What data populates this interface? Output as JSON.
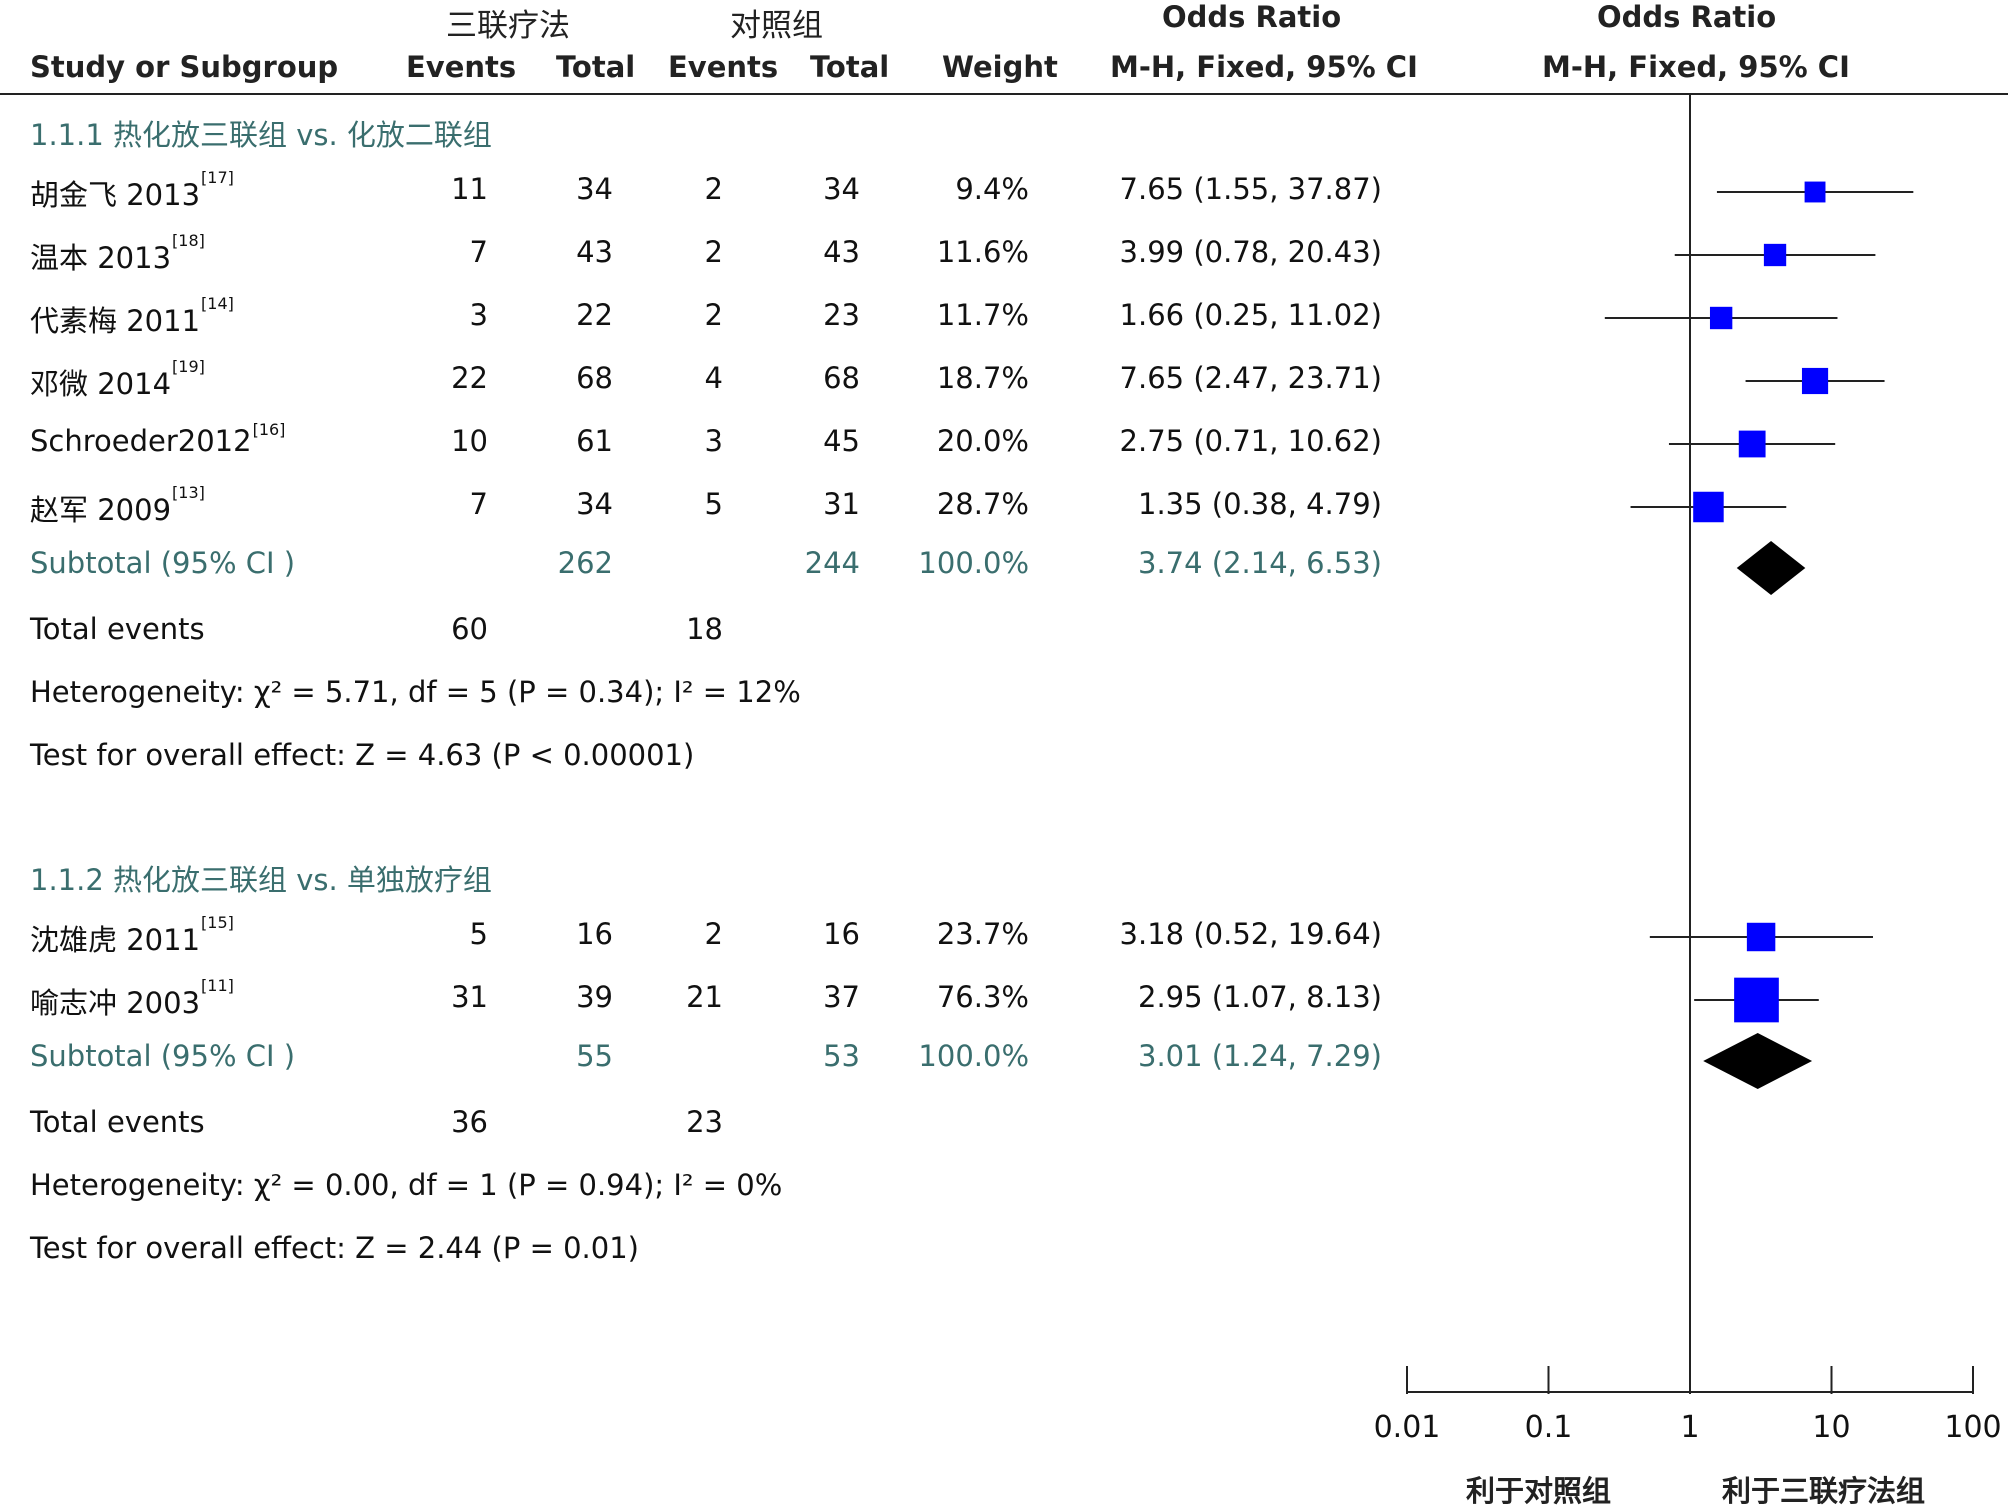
{
  "header": {
    "group_exp": "三联疗法",
    "group_ctl": "对照组",
    "or_title": "Odds Ratio",
    "or_method": "M-H, Fixed, 95% CI",
    "plot_title": "Odds Ratio",
    "plot_method": "M-H, Fixed, 95% CI",
    "study": "Study or Subgroup",
    "events_exp": "Events",
    "total_exp": "Total",
    "events_ctl": "Events",
    "total_ctl": "Total",
    "weight": "Weight"
  },
  "chart_data": {
    "type": "forest",
    "x_scale": "log",
    "xlim": [
      0.01,
      100
    ],
    "x_ticks": [
      "0.01",
      "0.1",
      "1",
      "10",
      "100"
    ],
    "reference_line": 1,
    "favors_left": "利于对照组",
    "favors_right": "利于三联疗法组",
    "colors": {
      "study_square": "#0000ff",
      "diamond": "#000000",
      "subtotal_text": "#3a6e6e"
    },
    "subgroups": [
      {
        "title": "1.1.1  热化放三联组 vs. 化放二联组",
        "studies": [
          {
            "name": "胡金飞 2013",
            "ref": "[17]",
            "e_events": "11",
            "e_total": "34",
            "c_events": "2",
            "c_total": "34",
            "weight": "9.4%",
            "or": 7.65,
            "lo": 1.55,
            "hi": 37.87,
            "ci_text": "7.65 (1.55, 37.87)"
          },
          {
            "name": "温本 2013",
            "ref": "[18]",
            "e_events": "7",
            "e_total": "43",
            "c_events": "2",
            "c_total": "43",
            "weight": "11.6%",
            "or": 3.99,
            "lo": 0.78,
            "hi": 20.43,
            "ci_text": "3.99 (0.78, 20.43)"
          },
          {
            "name": "代素梅 2011",
            "ref": "[14]",
            "e_events": "3",
            "e_total": "22",
            "c_events": "2",
            "c_total": "23",
            "weight": "11.7%",
            "or": 1.66,
            "lo": 0.25,
            "hi": 11.02,
            "ci_text": "1.66 (0.25, 11.02)"
          },
          {
            "name": "邓微 2014",
            "ref": "[19]",
            "e_events": "22",
            "e_total": "68",
            "c_events": "4",
            "c_total": "68",
            "weight": "18.7%",
            "or": 7.65,
            "lo": 2.47,
            "hi": 23.71,
            "ci_text": "7.65 (2.47, 23.71)"
          },
          {
            "name": "Schroeder2012",
            "ref": "[16]",
            "e_events": "10",
            "e_total": "61",
            "c_events": "3",
            "c_total": "45",
            "weight": "20.0%",
            "or": 2.75,
            "lo": 0.71,
            "hi": 10.62,
            "ci_text": "2.75 (0.71, 10.62)"
          },
          {
            "name": "赵军 2009",
            "ref": "[13]",
            "e_events": "7",
            "e_total": "34",
            "c_events": "5",
            "c_total": "31",
            "weight": "28.7%",
            "or": 1.35,
            "lo": 0.38,
            "hi": 4.79,
            "ci_text": "1.35 (0.38, 4.79)"
          }
        ],
        "subtotal": {
          "label": "Subtotal (95% CI )",
          "e_total": "262",
          "c_total": "244",
          "weight": "100.0%",
          "or": 3.74,
          "lo": 2.14,
          "hi": 6.53,
          "ci_text": "3.74 (2.14, 6.53)"
        },
        "total_events": {
          "label": "Total events",
          "e": "60",
          "c": "18"
        },
        "heterogeneity": "Heterogeneity:  χ² = 5.71, df = 5 (P = 0.34); I² = 12%",
        "overall_effect": "Test for overall effect: Z = 4.63 (P < 0.00001)"
      },
      {
        "title": "1.1.2  热化放三联组 vs. 单独放疗组",
        "studies": [
          {
            "name": "沈雄虎 2011",
            "ref": "[15]",
            "e_events": "5",
            "e_total": "16",
            "c_events": "2",
            "c_total": "16",
            "weight": "23.7%",
            "or": 3.18,
            "lo": 0.52,
            "hi": 19.64,
            "ci_text": "3.18 (0.52, 19.64)"
          },
          {
            "name": "喻志冲 2003",
            "ref": "[11]",
            "e_events": "31",
            "e_total": "39",
            "c_events": "21",
            "c_total": "37",
            "weight": "76.3%",
            "or": 2.95,
            "lo": 1.07,
            "hi": 8.13,
            "ci_text": "2.95 (1.07, 8.13)"
          }
        ],
        "subtotal": {
          "label": "Subtotal (95% CI )",
          "e_total": "55",
          "c_total": "53",
          "weight": "100.0%",
          "or": 3.01,
          "lo": 1.24,
          "hi": 7.29,
          "ci_text": "3.01 (1.24, 7.29)"
        },
        "total_events": {
          "label": "Total events",
          "e": "36",
          "c": "23"
        },
        "heterogeneity": "Heterogeneity:  χ² = 0.00, df = 1 (P = 0.94); I² = 0%",
        "overall_effect": "Test for overall effect: Z = 2.44 (P = 0.01)"
      }
    ]
  }
}
